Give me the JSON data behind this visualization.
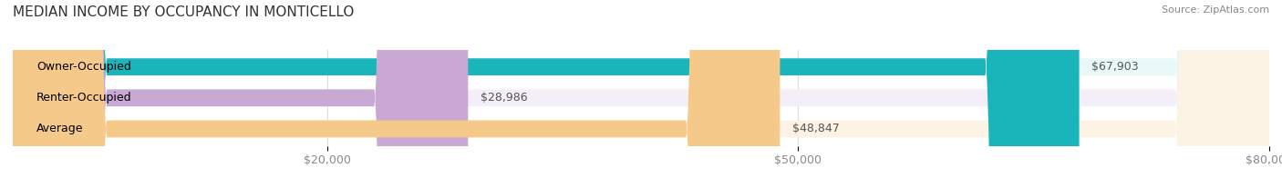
{
  "title": "MEDIAN INCOME BY OCCUPANCY IN MONTICELLO",
  "source": "Source: ZipAtlas.com",
  "categories": [
    "Owner-Occupied",
    "Renter-Occupied",
    "Average"
  ],
  "values": [
    67903,
    28986,
    48847
  ],
  "bar_colors": [
    "#1ab5bb",
    "#c9a8d4",
    "#f5c98a"
  ],
  "bar_bg_colors": [
    "#e8f8f9",
    "#f3eef7",
    "#fdf3e5"
  ],
  "value_labels": [
    "$67,903",
    "$28,986",
    "$48,847"
  ],
  "xlim": [
    0,
    80000
  ],
  "xticks": [
    20000,
    50000,
    80000
  ],
  "xticklabels": [
    "$20,000",
    "$50,000",
    "$80,000"
  ],
  "background_color": "#ffffff",
  "bar_height": 0.55,
  "title_fontsize": 11,
  "label_fontsize": 9,
  "value_fontsize": 9,
  "tick_fontsize": 9,
  "source_fontsize": 8
}
